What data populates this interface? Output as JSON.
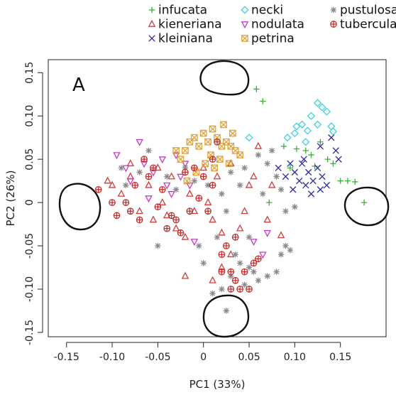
{
  "chart_data": {
    "type": "scatter",
    "panel_label": "A",
    "xlabel": "PC1 (33%)",
    "ylabel": "PC2 (26%)",
    "xlim": [
      -0.17,
      0.2
    ],
    "ylim": [
      -0.155,
      0.165
    ],
    "xticks": [
      -0.15,
      -0.1,
      -0.05,
      0,
      0.05,
      0.1,
      0.15
    ],
    "xtick_labels": [
      "-0.15",
      "-0.10",
      "-0.05",
      "0",
      "0.05",
      "0.10",
      "0.15"
    ],
    "yticks": [
      -0.15,
      -0.1,
      -0.05,
      0,
      0.05,
      0.1,
      0.15
    ],
    "ytick_labels": [
      "-0.15",
      "-0.10",
      "-0.05",
      "0",
      "0.05",
      "0.10",
      "0.15"
    ],
    "grid": false,
    "legend_position": "top",
    "series": [
      {
        "name": "infucata",
        "marker": "plus",
        "color": "#33b233",
        "points": [
          [
            0.058,
            0.131
          ],
          [
            0.065,
            0.117
          ],
          [
            0.088,
            0.065
          ],
          [
            0.102,
            0.062
          ],
          [
            0.112,
            0.06
          ],
          [
            0.118,
            0.055
          ],
          [
            0.128,
            0.07
          ],
          [
            0.136,
            0.05
          ],
          [
            0.142,
            0.045
          ],
          [
            0.15,
            0.025
          ],
          [
            0.158,
            0.025
          ],
          [
            0.166,
            0.024
          ],
          [
            0.176,
            0.0
          ],
          [
            0.122,
            0.042
          ],
          [
            0.095,
            0.04
          ],
          [
            0.072,
            0.0
          ]
        ]
      },
      {
        "name": "kieneriana",
        "marker": "triangle",
        "color": "#d33c3c",
        "points": [
          [
            -0.105,
            0.025
          ],
          [
            -0.1,
            0.02
          ],
          [
            -0.09,
            0.01
          ],
          [
            -0.08,
            0.03
          ],
          [
            -0.07,
            -0.01
          ],
          [
            -0.06,
            0.02
          ],
          [
            -0.055,
            -0.02
          ],
          [
            -0.05,
            0.04
          ],
          [
            -0.045,
            0.0
          ],
          [
            -0.035,
            0.03
          ],
          [
            -0.03,
            -0.03
          ],
          [
            -0.02,
            -0.04
          ],
          [
            -0.015,
            0.01
          ],
          [
            -0.01,
            -0.01
          ],
          [
            0.0,
            0.04
          ],
          [
            0.005,
            0.0
          ],
          [
            0.01,
            -0.02
          ],
          [
            0.015,
            0.03
          ],
          [
            0.02,
            -0.035
          ],
          [
            0.03,
            0.045
          ],
          [
            0.04,
            -0.03
          ],
          [
            0.05,
            0.02
          ],
          [
            0.055,
            0.03
          ],
          [
            0.06,
            0.065
          ],
          [
            0.03,
            -0.06
          ],
          [
            0.02,
            -0.075
          ],
          [
            -0.02,
            -0.085
          ],
          [
            0.01,
            -0.09
          ],
          [
            -0.08,
            0.045
          ],
          [
            0.045,
            -0.01
          ],
          [
            -0.04,
            -0.015
          ],
          [
            0.07,
            -0.02
          ],
          [
            0.075,
            0.02
          ],
          [
            0.085,
            -0.038
          ]
        ]
      },
      {
        "name": "kleiniana",
        "marker": "x",
        "color": "#2b2b9e",
        "points": [
          [
            0.082,
            0.04
          ],
          [
            0.09,
            0.03
          ],
          [
            0.095,
            0.045
          ],
          [
            0.1,
            0.035
          ],
          [
            0.105,
            0.025
          ],
          [
            0.108,
            0.045
          ],
          [
            0.112,
            0.02
          ],
          [
            0.115,
            0.035
          ],
          [
            0.118,
            0.01
          ],
          [
            0.12,
            0.025
          ],
          [
            0.125,
            0.04
          ],
          [
            0.128,
            0.015
          ],
          [
            0.13,
            0.03
          ],
          [
            0.135,
            0.02
          ],
          [
            0.14,
            0.075
          ],
          [
            0.145,
            0.06
          ],
          [
            0.148,
            0.05
          ],
          [
            0.128,
            0.065
          ],
          [
            0.098,
            0.015
          ],
          [
            0.11,
            0.05
          ]
        ]
      },
      {
        "name": "necki",
        "marker": "diamond",
        "color": "#3fd0dd",
        "points": [
          [
            0.05,
            0.075
          ],
          [
            0.092,
            0.075
          ],
          [
            0.1,
            0.08
          ],
          [
            0.102,
            0.088
          ],
          [
            0.108,
            0.09
          ],
          [
            0.114,
            0.083
          ],
          [
            0.118,
            0.1
          ],
          [
            0.125,
            0.09
          ],
          [
            0.13,
            0.11
          ],
          [
            0.135,
            0.105
          ],
          [
            0.14,
            0.088
          ],
          [
            0.142,
            0.082
          ],
          [
            0.125,
            0.115
          ],
          [
            0.112,
            0.07
          ]
        ]
      },
      {
        "name": "nodulata",
        "marker": "triangle-down",
        "color": "#c43cc4",
        "points": [
          [
            -0.095,
            0.055
          ],
          [
            -0.085,
            0.04
          ],
          [
            -0.08,
            0.025
          ],
          [
            -0.07,
            0.07
          ],
          [
            -0.065,
            0.045
          ],
          [
            -0.055,
            0.035
          ],
          [
            -0.045,
            0.05
          ],
          [
            -0.04,
            0.02
          ],
          [
            -0.035,
            0.01
          ],
          [
            -0.03,
            0.055
          ],
          [
            -0.025,
            0.03
          ],
          [
            -0.02,
            0.045
          ],
          [
            -0.015,
            0.02
          ],
          [
            -0.06,
            0.005
          ],
          [
            0.055,
            -0.045
          ],
          [
            0.065,
            -0.06
          ],
          [
            0.07,
            -0.035
          ],
          [
            -0.01,
            -0.045
          ]
        ]
      },
      {
        "name": "petrina",
        "marker": "square-x",
        "color": "#e0a23a",
        "points": [
          [
            -0.02,
            0.06
          ],
          [
            -0.015,
            0.07
          ],
          [
            -0.01,
            0.075
          ],
          [
            -0.005,
            0.065
          ],
          [
            0.0,
            0.08
          ],
          [
            0.005,
            0.07
          ],
          [
            0.01,
            0.085
          ],
          [
            0.015,
            0.075
          ],
          [
            0.02,
            0.065
          ],
          [
            0.025,
            0.07
          ],
          [
            0.03,
            0.065
          ],
          [
            0.035,
            0.06
          ],
          [
            0.04,
            0.055
          ],
          [
            -0.025,
            0.05
          ],
          [
            -0.03,
            0.06
          ],
          [
            0.008,
            0.055
          ],
          [
            0.018,
            0.05
          ],
          [
            0.028,
            0.045
          ],
          [
            0.002,
            0.045
          ],
          [
            -0.008,
            0.035
          ],
          [
            0.012,
            0.04
          ],
          [
            0.022,
            0.09
          ],
          [
            -0.018,
            0.025
          ],
          [
            0.032,
            0.08
          ]
        ]
      },
      {
        "name": "pustulosa",
        "marker": "asterisk",
        "color": "#8a8a8a",
        "points": [
          [
            -0.05,
            -0.05
          ],
          [
            -0.09,
            0.04
          ],
          [
            -0.085,
            0.02
          ],
          [
            -0.07,
            0.035
          ],
          [
            -0.06,
            0.06
          ],
          [
            -0.04,
            0.03
          ],
          [
            -0.03,
            0.015
          ],
          [
            -0.02,
            0.04
          ],
          [
            -0.01,
            0.025
          ],
          [
            0.005,
            0.02
          ],
          [
            0.02,
            0.01
          ],
          [
            0.025,
            -0.01
          ],
          [
            0.03,
            0.035
          ],
          [
            0.04,
            0.02
          ],
          [
            0.045,
            0.04
          ],
          [
            0.06,
            0.055
          ],
          [
            0.065,
            0.01
          ],
          [
            0.07,
            0.045
          ],
          [
            0.075,
            0.06
          ],
          [
            0.08,
            0.03
          ],
          [
            0.085,
            0.015
          ],
          [
            0.09,
            -0.01
          ],
          [
            0.1,
            -0.005
          ],
          [
            0.04,
            -0.07
          ],
          [
            0.05,
            -0.075
          ],
          [
            0.055,
            -0.08
          ],
          [
            0.06,
            -0.09
          ],
          [
            0.07,
            -0.085
          ],
          [
            0.08,
            -0.08
          ],
          [
            0.085,
            -0.06
          ],
          [
            0.09,
            -0.05
          ],
          [
            0.095,
            -0.055
          ],
          [
            0.03,
            -0.085
          ],
          [
            0.02,
            -0.1
          ],
          [
            0.01,
            -0.105
          ],
          [
            0.025,
            -0.125
          ],
          [
            0.045,
            -0.095
          ],
          [
            0.0,
            -0.07
          ],
          [
            -0.005,
            -0.05
          ],
          [
            0.015,
            -0.04
          ],
          [
            0.035,
            -0.06
          ],
          [
            0.05,
            -0.04
          ]
        ]
      },
      {
        "name": "tuberculata",
        "marker": "circle-plus",
        "color": "#c03030",
        "points": [
          [
            -0.115,
            0.015
          ],
          [
            -0.1,
            0.0
          ],
          [
            -0.095,
            -0.015
          ],
          [
            -0.085,
            0.0
          ],
          [
            -0.08,
            -0.01
          ],
          [
            -0.075,
            0.02
          ],
          [
            -0.07,
            -0.02
          ],
          [
            -0.065,
            0.05
          ],
          [
            -0.06,
            0.03
          ],
          [
            -0.055,
            0.04
          ],
          [
            -0.05,
            -0.005
          ],
          [
            -0.045,
            0.015
          ],
          [
            -0.04,
            -0.03
          ],
          [
            -0.035,
            -0.015
          ],
          [
            -0.03,
            -0.02
          ],
          [
            -0.025,
            -0.035
          ],
          [
            -0.02,
            0.035
          ],
          [
            -0.01,
            0.04
          ],
          [
            -0.005,
            0.005
          ],
          [
            0.0,
            0.03
          ],
          [
            0.005,
            -0.01
          ],
          [
            0.01,
            0.05
          ],
          [
            0.015,
            0.07
          ],
          [
            0.02,
            -0.06
          ],
          [
            0.025,
            -0.05
          ],
          [
            0.03,
            -0.08
          ],
          [
            0.035,
            -0.09
          ],
          [
            0.04,
            -0.1
          ],
          [
            0.045,
            -0.08
          ],
          [
            0.05,
            -0.1
          ],
          [
            0.055,
            -0.07
          ],
          [
            0.03,
            -0.1
          ],
          [
            0.02,
            -0.08
          ],
          [
            0.01,
            0.02
          ],
          [
            -0.015,
            -0.01
          ],
          [
            0.06,
            -0.065
          ],
          [
            0.035,
            -0.04
          ]
        ]
      }
    ]
  }
}
